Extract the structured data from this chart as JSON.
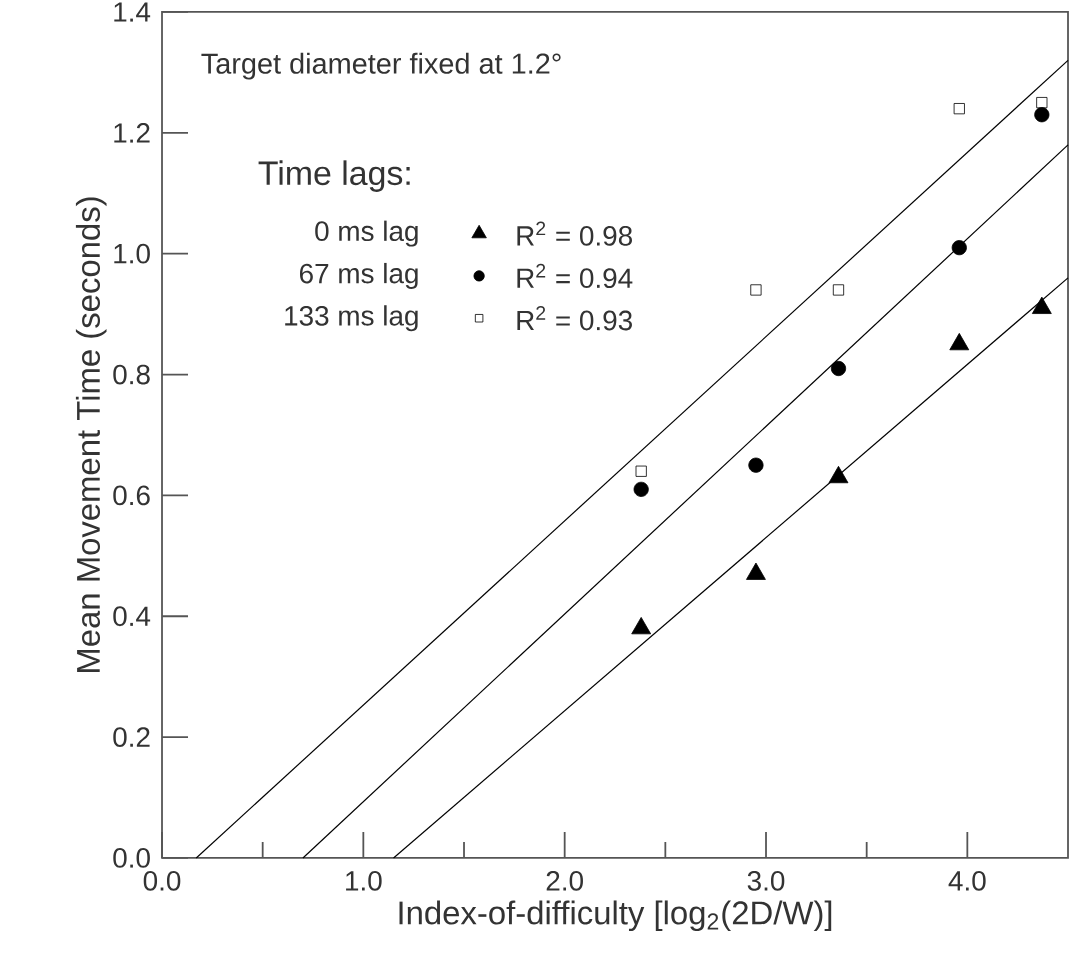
{
  "chart_data": {
    "type": "scatter",
    "title": "Target diameter fixed at 1.2°",
    "xlabel": "Index-of-difficulty [log$_{2}$(2D/W)]",
    "ylabel": "Mean Movement Time (seconds)",
    "legend_title": "Time lags:",
    "legend": "top left",
    "xlim": [
      0,
      4.5
    ],
    "ylim": [
      0,
      1.4
    ],
    "xticks": [
      {
        "value": 0,
        "label": "0.0"
      },
      {
        "value": 0.5,
        "label": null
      },
      {
        "value": 1,
        "label": "1.0"
      },
      {
        "value": 1.5,
        "label": null
      },
      {
        "value": 2,
        "label": "2.0"
      },
      {
        "value": 2.5,
        "label": null
      },
      {
        "value": 3,
        "label": "3.0"
      },
      {
        "value": 3.5,
        "label": null
      },
      {
        "value": 4,
        "label": "4.0"
      }
    ],
    "yticks": [
      {
        "value": 0,
        "label": "0.0"
      },
      {
        "value": 0.2,
        "label": "0.2"
      },
      {
        "value": 0.4,
        "label": "0.4"
      },
      {
        "value": 0.6,
        "label": "0.6"
      },
      {
        "value": 0.8,
        "label": "0.8"
      },
      {
        "value": 1.0,
        "label": "1.0"
      },
      {
        "value": 1.2,
        "label": "1.2"
      },
      {
        "value": 1.4,
        "label": "1.4"
      }
    ],
    "annotations": [
      "R$^{2}$ = 0.98",
      "R$^{2}$ = 0.94",
      "R$^{2}$ = 0.93"
    ],
    "series": [
      {
        "name": "0 ms lag",
        "marker": "triangle",
        "color": "#000000",
        "x": [
          2.38,
          2.95,
          3.36,
          3.96,
          4.37
        ],
        "values": [
          0.38,
          0.47,
          0.63,
          0.85,
          0.91
        ]
      },
      {
        "name": "67 ms lag",
        "marker": "circle",
        "color": "#000000",
        "x": [
          2.38,
          2.95,
          3.36,
          3.96,
          4.37
        ],
        "values": [
          0.61,
          0.65,
          0.81,
          1.01,
          1.23
        ]
      },
      {
        "name": "133 ms lag",
        "marker": "square",
        "color": "#000000",
        "x": [
          2.38,
          2.95,
          3.36,
          3.96,
          4.37
        ],
        "values": [
          0.64,
          0.94,
          0.94,
          1.24,
          1.25
        ]
      },
      {
        "type": "line",
        "color": "#000000",
        "x": [
          1.15,
          4.5
        ],
        "values": [
          0,
          0.96
        ]
      },
      {
        "type": "line",
        "color": "#000000",
        "x": [
          0.7,
          4.5
        ],
        "values": [
          0,
          1.18
        ]
      },
      {
        "type": "line",
        "color": "#000000",
        "x": [
          0.17,
          4.5
        ],
        "values": [
          0,
          1.32
        ]
      }
    ]
  }
}
